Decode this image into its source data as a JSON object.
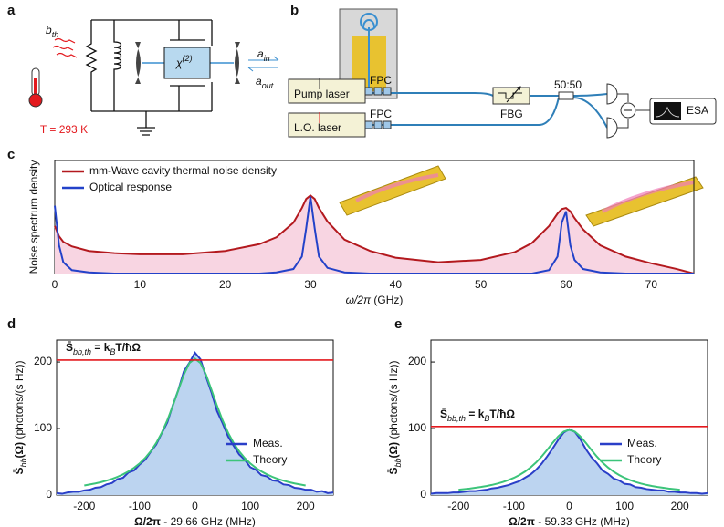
{
  "panel_labels": [
    "a",
    "b",
    "c",
    "d",
    "e"
  ],
  "circuit": {
    "bath": [
      {
        "text": "b"
      },
      {
        "text": "th",
        "sub": true
      }
    ],
    "chi": [
      {
        "text": "χ"
      },
      {
        "text": "(2)",
        "sup": true
      }
    ],
    "a_in": [
      {
        "text": "a"
      },
      {
        "text": "in",
        "sub": true
      }
    ],
    "a_out": [
      {
        "text": "a"
      },
      {
        "text": "out",
        "sub": true
      }
    ],
    "temperature": "T = 293 K"
  },
  "setup": {
    "pump": "Pump laser",
    "lo": "L.O. laser",
    "fpc": [
      "FPC",
      "FPC"
    ],
    "fbg": "FBG",
    "splitter": "50:50",
    "esa": "ESA"
  },
  "chart_data": [
    {
      "type": "line",
      "xlabel": [
        {
          "text": "ω/2π",
          "italic": true
        },
        {
          "text": " (GHz)"
        }
      ],
      "ylabel": [
        {
          "text": "Noise spectrum density"
        }
      ],
      "x": [
        0,
        0.5,
        1,
        2,
        4,
        7,
        10,
        15,
        20,
        24,
        26,
        28,
        29,
        29.5,
        30,
        30.5,
        31,
        32,
        34,
        37,
        40,
        45,
        50,
        54,
        56,
        58,
        59,
        59.5,
        60,
        60.5,
        61,
        62,
        64,
        67,
        70,
        73,
        75
      ],
      "xlim": [
        0,
        75
      ],
      "xticks": [
        0,
        10,
        20,
        30,
        40,
        50,
        60,
        70
      ],
      "ylim": [
        0,
        1
      ],
      "legend": "upper left",
      "series": [
        {
          "name": "mm-Wave cavity thermal noise density",
          "color": "#b3191e",
          "fill": "#f8d5e2",
          "values": [
            0.42,
            0.33,
            0.28,
            0.24,
            0.2,
            0.18,
            0.17,
            0.17,
            0.2,
            0.26,
            0.32,
            0.45,
            0.58,
            0.66,
            0.69,
            0.66,
            0.58,
            0.46,
            0.3,
            0.2,
            0.14,
            0.1,
            0.12,
            0.19,
            0.27,
            0.42,
            0.53,
            0.57,
            0.58,
            0.55,
            0.49,
            0.39,
            0.25,
            0.15,
            0.09,
            0.04,
            0
          ]
        },
        {
          "name": "Optical response",
          "color": "#2342c9",
          "values": [
            0.6,
            0.25,
            0.1,
            0.03,
            0.01,
            0,
            0,
            0,
            0,
            0,
            0.01,
            0.04,
            0.15,
            0.4,
            0.68,
            0.4,
            0.15,
            0.05,
            0.01,
            0,
            0,
            0,
            0,
            0,
            0,
            0.03,
            0.15,
            0.45,
            0.55,
            0.25,
            0.12,
            0.04,
            0.01,
            0,
            0,
            0,
            0
          ]
        }
      ]
    },
    {
      "type": "line",
      "xlabel": [
        {
          "text": "Ω/2π",
          "bold": true
        },
        {
          "text": " - 29.66 GHz (MHz)"
        }
      ],
      "ylabel": [
        {
          "text": "S̄",
          "bold": true
        },
        {
          "text": "bb",
          "sub": true,
          "italic": true
        },
        {
          "text": "(Ω)",
          "bold": true
        },
        {
          "text": "  (photons/(s Hz))"
        }
      ],
      "annotation": [
        {
          "text": "S̄",
          "bold": true
        },
        {
          "text": "bb,th",
          "sub": true,
          "italic": true
        },
        {
          "text": " = k",
          "bold": true
        },
        {
          "text": "B",
          "sub": true,
          "italic": true
        },
        {
          "text": "T/ħΩ",
          "bold": true
        }
      ],
      "reference_line": 203,
      "reference_color": "#e3191e",
      "x": [
        -250,
        -240,
        -230,
        -220,
        -210,
        -200,
        -190,
        -180,
        -170,
        -160,
        -150,
        -140,
        -130,
        -120,
        -110,
        -100,
        -90,
        -80,
        -70,
        -60,
        -50,
        -40,
        -30,
        -20,
        -10,
        0,
        10,
        20,
        30,
        40,
        50,
        60,
        70,
        80,
        90,
        100,
        110,
        120,
        130,
        140,
        150,
        160,
        170,
        180,
        190,
        200,
        210,
        220,
        230,
        240,
        250
      ],
      "xlim": [
        -250,
        250
      ],
      "xticks": [
        -200,
        -100,
        0,
        100,
        200
      ],
      "ylim": [
        0,
        233
      ],
      "yticks": [
        0,
        100,
        200
      ],
      "legend": "lower right",
      "series": [
        {
          "name": "Meas.",
          "color": "#2a3fc8",
          "fill": "#bcd4f0",
          "values": [
            3,
            2,
            4,
            5,
            5,
            7,
            8,
            11,
            12,
            16,
            18,
            24,
            26,
            34,
            37,
            46,
            53,
            65,
            76,
            93,
            109,
            135,
            158,
            186,
            199,
            214,
            204,
            178,
            154,
            126,
            108,
            88,
            74,
            61,
            53,
            42,
            38,
            30,
            28,
            22,
            21,
            16,
            15,
            11,
            10,
            8,
            8,
            5,
            6,
            3,
            4
          ]
        },
        {
          "name": "Theory",
          "color": "#3cc47a",
          "values": [
            null,
            null,
            null,
            null,
            null,
            14.4,
            15.9,
            17.5,
            19.4,
            21.7,
            24.3,
            27.4,
            31.1,
            35.6,
            41,
            47.6,
            55.7,
            65.7,
            78.2,
            93.6,
            112.3,
            134.1,
            157.9,
            181.1,
            198.4,
            205,
            198.4,
            181.1,
            157.9,
            134.1,
            112.3,
            93.6,
            78.2,
            65.7,
            55.7,
            47.6,
            41,
            35.6,
            31.1,
            27.4,
            24.3,
            21.7,
            19.4,
            17.5,
            15.9,
            14.4,
            null,
            null,
            null,
            null,
            null
          ]
        }
      ]
    },
    {
      "type": "line",
      "xlabel": [
        {
          "text": "Ω/2π",
          "bold": true
        },
        {
          "text": " - 59.33 GHz (MHz)"
        }
      ],
      "ylabel": [
        {
          "text": "S̄",
          "bold": true
        },
        {
          "text": "bb",
          "sub": true,
          "italic": true
        },
        {
          "text": "(Ω)",
          "bold": true
        },
        {
          "text": "  (photons/(s Hz))"
        }
      ],
      "annotation": [
        {
          "text": "S̄",
          "bold": true
        },
        {
          "text": "bb,th",
          "sub": true,
          "italic": true
        },
        {
          "text": " = k",
          "bold": true
        },
        {
          "text": "B",
          "sub": true,
          "italic": true
        },
        {
          "text": "T/ħΩ",
          "bold": true
        }
      ],
      "reference_line": 103,
      "reference_color": "#e3191e",
      "x": [
        -250,
        -240,
        -230,
        -220,
        -210,
        -200,
        -190,
        -180,
        -170,
        -160,
        -150,
        -140,
        -130,
        -120,
        -110,
        -100,
        -90,
        -80,
        -70,
        -60,
        -50,
        -40,
        -30,
        -20,
        -10,
        0,
        10,
        20,
        30,
        40,
        50,
        60,
        70,
        80,
        90,
        100,
        110,
        120,
        130,
        140,
        150,
        160,
        170,
        180,
        190,
        200,
        210,
        220,
        230,
        240,
        250
      ],
      "xlim": [
        -250,
        250
      ],
      "xticks": [
        -200,
        -100,
        0,
        100,
        200
      ],
      "ylim": [
        0,
        233
      ],
      "yticks": [
        0,
        100,
        200
      ],
      "legend": "lower right",
      "series": [
        {
          "name": "Meas.",
          "color": "#2a3fc8",
          "fill": "#bcd4f0",
          "values": [
            2,
            3,
            3,
            3,
            4,
            4,
            5,
            6,
            6,
            7,
            8,
            10,
            11,
            13,
            15,
            18,
            21,
            26,
            31,
            38,
            47,
            58,
            70,
            83,
            94,
            99,
            95,
            84,
            69,
            57,
            48,
            37,
            32,
            25,
            22,
            17,
            16,
            12,
            11,
            9,
            8,
            7,
            7,
            5,
            5,
            4,
            4,
            3,
            3,
            2,
            3
          ]
        },
        {
          "name": "Theory",
          "color": "#3cc47a",
          "values": [
            null,
            null,
            null,
            null,
            null,
            8.1,
            8.9,
            9.8,
            10.9,
            12.1,
            13.5,
            15.2,
            17.2,
            19.6,
            22.5,
            25.9,
            30.2,
            35.3,
            41.5,
            49,
            57.8,
            67.8,
            78.4,
            88.2,
            95.4,
            98,
            95.4,
            88.2,
            78.4,
            67.8,
            57.8,
            49,
            41.5,
            35.3,
            30.2,
            25.9,
            22.5,
            19.6,
            17.2,
            15.2,
            13.5,
            12.1,
            10.9,
            9.8,
            8.9,
            8.1,
            null,
            null,
            null,
            null,
            null
          ]
        }
      ]
    }
  ]
}
